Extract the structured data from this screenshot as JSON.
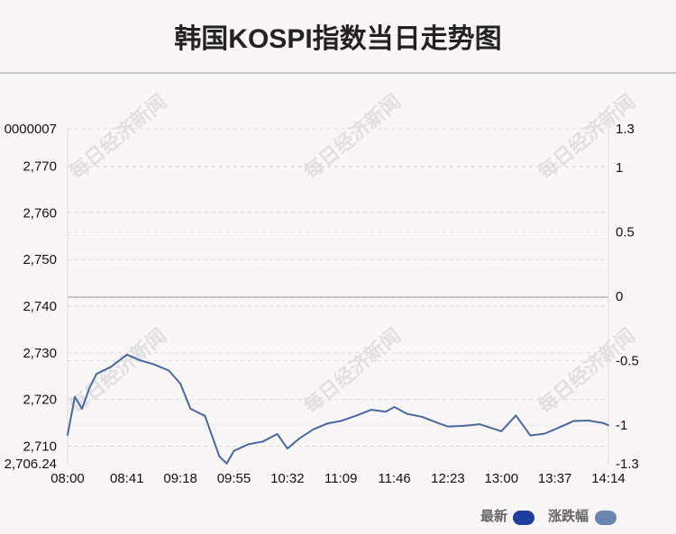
{
  "chart_data": {
    "type": "line",
    "title": "韩国KOSPI指数当日走势图",
    "x_ticks": [
      "08:00",
      "08:41",
      "09:18",
      "09:55",
      "10:32",
      "11:09",
      "11:46",
      "12:23",
      "13:00",
      "13:37",
      "14:14"
    ],
    "left_axis": {
      "ticks": [
        "2,706.24",
        "2,710",
        "2,720",
        "2,730",
        "2,740",
        "2,750",
        "2,760",
        "2,770",
        "0000007"
      ],
      "ylim": [
        2706.24,
        2778.0
      ]
    },
    "right_axis": {
      "ticks": [
        "-1.3",
        "-1",
        "-0.5",
        "0",
        "0.5",
        "1",
        "1.3"
      ],
      "ylim": [
        -1.3,
        1.3
      ]
    },
    "reference_line": 2741.9,
    "series": [
      {
        "name": "最新",
        "color": "#4a68a0",
        "x": [
          "08:00",
          "08:05",
          "08:10",
          "08:15",
          "08:20",
          "08:30",
          "08:41",
          "08:50",
          "09:00",
          "09:10",
          "09:18",
          "09:25",
          "09:35",
          "09:45",
          "09:50",
          "09:55",
          "10:05",
          "10:15",
          "10:25",
          "10:32",
          "10:40",
          "10:50",
          "11:00",
          "11:09",
          "11:20",
          "11:30",
          "11:40",
          "11:46",
          "11:55",
          "12:05",
          "12:15",
          "12:23",
          "12:35",
          "12:45",
          "13:00",
          "13:10",
          "13:20",
          "13:30",
          "13:37",
          "13:50",
          "14:00",
          "14:10",
          "14:14"
        ],
        "values": [
          2712.4,
          2720.6,
          2718.0,
          2722.4,
          2725.5,
          2727.0,
          2729.6,
          2728.4,
          2727.5,
          2726.2,
          2723.4,
          2718.0,
          2716.5,
          2707.8,
          2706.3,
          2709.0,
          2710.4,
          2711.0,
          2712.6,
          2709.5,
          2711.6,
          2713.6,
          2714.9,
          2715.4,
          2716.6,
          2717.8,
          2717.4,
          2718.4,
          2716.9,
          2716.3,
          2715.1,
          2714.2,
          2714.4,
          2714.7,
          2713.2,
          2716.6,
          2712.3,
          2712.7,
          2713.6,
          2715.4,
          2715.5,
          2715.0,
          2714.5
        ]
      }
    ],
    "legend": [
      {
        "label": "最新",
        "color": "#1f3fa0"
      },
      {
        "label": "涨跌幅",
        "color": "#6a84b0"
      }
    ],
    "legend_position": "bottom-right",
    "grid": true,
    "watermark": "每日经济新闻"
  }
}
